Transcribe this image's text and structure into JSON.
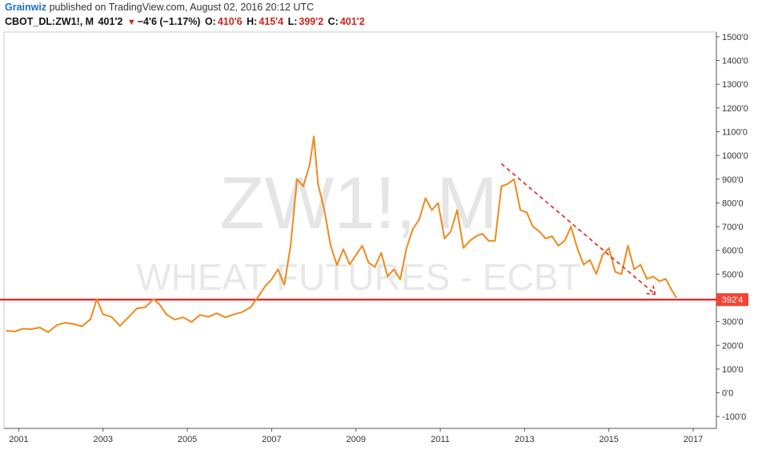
{
  "header": {
    "author": "Grainwiz",
    "published_text": "published on TradingView.com, August 02, 2016 20:12 UTC",
    "symbol": "CBOT_DL:ZW1!, M",
    "last": "401'2",
    "change": "−4'6 (−1.17%)",
    "open_label": "O:",
    "open": "410'6",
    "high_label": "H:",
    "high": "415'4",
    "low_label": "L:",
    "low": "399'2",
    "close_label": "C:",
    "close": "401'2"
  },
  "watermark": {
    "symbol": "ZW1!, M",
    "description": "WHEAT FUTURES - ECBT"
  },
  "colors": {
    "series": "#f08a1c",
    "support_line": "#ff0000",
    "trend_arrow": "#e8211b",
    "price_badge": "#f44336"
  },
  "chart_data": {
    "type": "line",
    "x_ticks": [
      "2001",
      "2003",
      "2005",
      "2007",
      "2009",
      "2011",
      "2013",
      "2015",
      "2017"
    ],
    "y_ticks": [
      "1500'0",
      "1400'0",
      "1300'0",
      "1200'0",
      "1100'0",
      "1000'0",
      "900'0",
      "800'0",
      "700'0",
      "600'0",
      "500'0",
      "400'0",
      "300'0",
      "200'0",
      "100'0",
      "0'0",
      "-100'0"
    ],
    "ylim": [
      -150,
      1520
    ],
    "xlim": [
      2000.65,
      2017.55
    ],
    "horizontal_line": {
      "value": 392.5,
      "label": "392'4"
    },
    "trend_arrow": {
      "x": [
        2012.45,
        2016.1
      ],
      "y": [
        965,
        415
      ]
    },
    "series": [
      {
        "x": [
          2000.7,
          2000.9,
          2001.1,
          2001.3,
          2001.5,
          2001.7,
          2001.9,
          2002.1,
          2002.3,
          2002.5,
          2002.7,
          2002.85,
          2003.0,
          2003.2,
          2003.4,
          2003.6,
          2003.8,
          2004.0,
          2004.2,
          2004.35,
          2004.5,
          2004.7,
          2004.9,
          2005.1,
          2005.3,
          2005.5,
          2005.7,
          2005.9,
          2006.1,
          2006.3,
          2006.5,
          2006.7,
          2006.85,
          2007.0,
          2007.15,
          2007.3,
          2007.45,
          2007.6,
          2007.75,
          2007.9,
          2008.0,
          2008.1,
          2008.25,
          2008.4,
          2008.55,
          2008.7,
          2008.85,
          2009.0,
          2009.15,
          2009.3,
          2009.45,
          2009.6,
          2009.75,
          2009.9,
          2010.05,
          2010.2,
          2010.35,
          2010.5,
          2010.65,
          2010.8,
          2010.95,
          2011.1,
          2011.25,
          2011.4,
          2011.55,
          2011.7,
          2011.85,
          2012.0,
          2012.15,
          2012.3,
          2012.45,
          2012.6,
          2012.75,
          2012.9,
          2013.05,
          2013.2,
          2013.35,
          2013.5,
          2013.65,
          2013.8,
          2013.95,
          2014.1,
          2014.25,
          2014.4,
          2014.55,
          2014.7,
          2014.85,
          2015.0,
          2015.15,
          2015.3,
          2015.45,
          2015.6,
          2015.75,
          2015.9,
          2016.05,
          2016.2,
          2016.35,
          2016.5,
          2016.6
        ],
        "values": [
          262,
          258,
          270,
          268,
          275,
          255,
          285,
          295,
          290,
          280,
          310,
          395,
          330,
          320,
          282,
          318,
          355,
          360,
          395,
          370,
          330,
          308,
          318,
          298,
          328,
          320,
          335,
          318,
          330,
          340,
          360,
          410,
          450,
          478,
          520,
          455,
          620,
          900,
          870,
          960,
          1080,
          880,
          770,
          620,
          538,
          605,
          540,
          580,
          620,
          548,
          530,
          590,
          490,
          520,
          478,
          610,
          690,
          730,
          820,
          770,
          800,
          650,
          680,
          770,
          610,
          640,
          660,
          670,
          640,
          640,
          870,
          880,
          900,
          770,
          760,
          700,
          680,
          650,
          660,
          620,
          640,
          700,
          610,
          540,
          560,
          500,
          580,
          610,
          510,
          500,
          620,
          520,
          540,
          480,
          490,
          470,
          480,
          430,
          401
        ]
      }
    ]
  }
}
